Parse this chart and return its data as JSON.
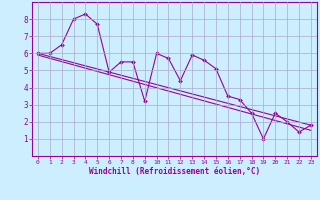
{
  "xlabel": "Windchill (Refroidissement éolien,°C)",
  "background_color": "#cceeff",
  "grid_color": "#aaaacc",
  "line_color": "#990099",
  "xlim": [
    -0.5,
    23.5
  ],
  "ylim": [
    0,
    9
  ],
  "xticks": [
    0,
    1,
    2,
    3,
    4,
    5,
    6,
    7,
    8,
    9,
    10,
    11,
    12,
    13,
    14,
    15,
    16,
    17,
    18,
    19,
    20,
    21,
    22,
    23
  ],
  "yticks": [
    1,
    2,
    3,
    4,
    5,
    6,
    7,
    8
  ],
  "data_line_x": [
    0,
    1,
    2,
    3,
    4,
    5,
    6,
    7,
    8,
    9,
    10,
    11,
    12,
    13,
    14,
    15,
    16,
    17,
    18,
    19,
    20,
    21,
    22,
    23
  ],
  "data_line_y": [
    6.0,
    6.0,
    6.5,
    8.0,
    8.3,
    7.7,
    4.9,
    5.5,
    5.5,
    3.2,
    6.0,
    5.7,
    4.4,
    5.9,
    5.6,
    5.1,
    3.5,
    3.3,
    2.5,
    1.0,
    2.5,
    2.0,
    1.4,
    1.8
  ],
  "trend1_x": [
    0,
    23
  ],
  "trend1_y": [
    6.0,
    1.8
  ],
  "trend2_x": [
    0,
    23
  ],
  "trend2_y": [
    5.9,
    1.5
  ]
}
